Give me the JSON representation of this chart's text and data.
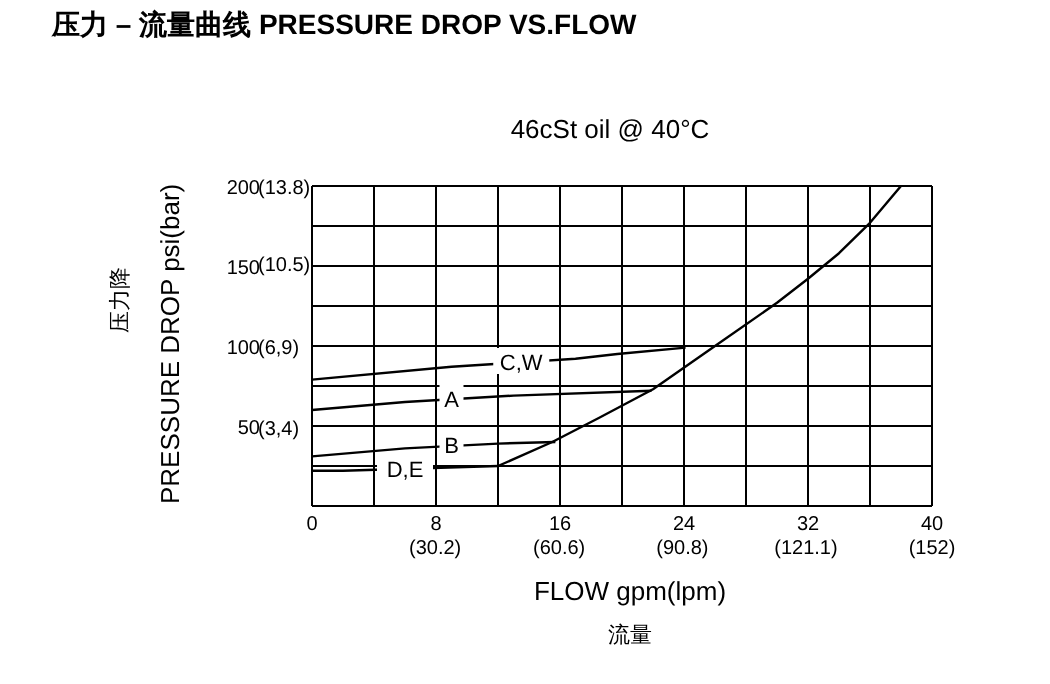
{
  "chart_data": {
    "type": "line",
    "title": "压力 – 流量曲线 PRESSURE DROP VS.FLOW",
    "subtitle": "46cSt oil @ 40°C",
    "xlabel": "FLOW gpm(lpm)\n流量",
    "ylabel": "PRESSURE DROP psi(bar)\n压力降",
    "xlim": [
      0,
      40
    ],
    "ylim": [
      0,
      200
    ],
    "xticks": [
      0,
      {
        "value": 4,
        "label": null
      },
      8,
      {
        "value": 12,
        "label": null
      },
      16,
      {
        "value": 20,
        "label": null
      },
      24,
      {
        "value": 28,
        "label": null
      },
      32,
      {
        "value": 36,
        "label": null
      },
      40
    ],
    "x2lim": [
      0,
      152
    ],
    "x2ticks": [
      {
        "value": 30.2,
        "label": "(30.2)"
      },
      {
        "value": 60.6,
        "label": "(60.6)"
      },
      {
        "value": 90.8,
        "label": "(90.8)"
      },
      {
        "value": 121.1,
        "label": "(121.1)"
      },
      {
        "value": 152,
        "label": "(152)"
      }
    ],
    "yticks": [
      {
        "value": 0,
        "label": null
      },
      {
        "value": 25,
        "label": null
      },
      50,
      {
        "value": 75,
        "label": null
      },
      100,
      {
        "value": 125,
        "label": null
      },
      150,
      {
        "value": 175,
        "label": null
      },
      200
    ],
    "y2lim": [
      0,
      13.8
    ],
    "y2ticks": [
      {
        "value": 3.4,
        "label": "(3,4)"
      },
      {
        "value": 6.9,
        "label": "(6,9)"
      },
      {
        "value": 10.5,
        "label": "(10.5)"
      },
      {
        "value": 13.8,
        "label": "(13.8)"
      }
    ],
    "grid": true,
    "legend": false,
    "marker": "none",
    "line_style": "solid",
    "series": [
      {
        "color": "#000000",
        "x": [
          0,
          2,
          12,
          15.5,
          18.5,
          22,
          26,
          30,
          32,
          34,
          36,
          38
        ],
        "values": [
          22,
          22,
          25,
          40,
          55,
          73,
          100,
          127,
          142,
          158,
          177,
          200
        ]
      },
      {
        "color": "#000000",
        "x": [
          0,
          9,
          17,
          19.7,
          24.1
        ],
        "values": [
          79,
          87,
          92,
          95,
          99
        ]
      },
      {
        "color": "#000000",
        "x": [
          0,
          6,
          13,
          21.9
        ],
        "values": [
          60,
          65,
          69,
          72
        ]
      },
      {
        "color": "#000000",
        "x": [
          0,
          6,
          12,
          15.7
        ],
        "values": [
          31,
          36,
          39,
          40
        ]
      }
    ],
    "annotations": [
      {
        "text": "C,W",
        "x": 13.5,
        "y": 90
      },
      {
        "text": "A",
        "x": 9,
        "y": 67
      },
      {
        "text": "B",
        "x": 9,
        "y": 38
      },
      {
        "text": "D,E",
        "x": 6,
        "y": 23
      }
    ]
  }
}
